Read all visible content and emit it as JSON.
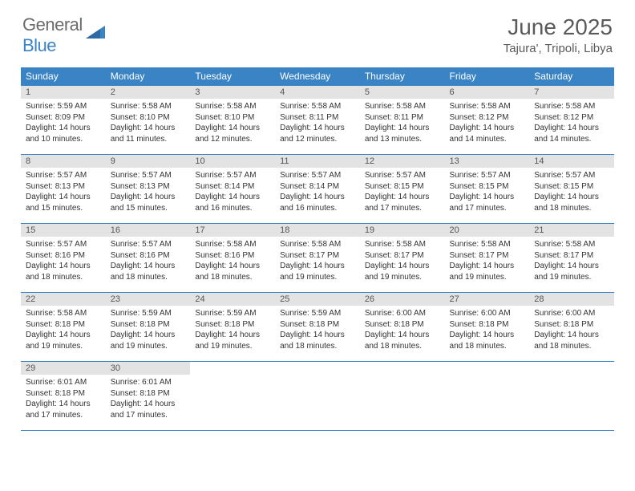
{
  "logo": {
    "general": "General",
    "blue": "Blue"
  },
  "title": "June 2025",
  "location": "Tajura', Tripoli, Libya",
  "colors": {
    "header_bg": "#3a84c5",
    "header_text": "#ffffff",
    "daynum_bg": "#e3e3e3",
    "border": "#3a84c5",
    "title_color": "#5a5a5a",
    "logo_gray": "#6b6b6b",
    "logo_blue": "#3a84c5"
  },
  "day_names": [
    "Sunday",
    "Monday",
    "Tuesday",
    "Wednesday",
    "Thursday",
    "Friday",
    "Saturday"
  ],
  "layout": {
    "start_offset": 0,
    "days_in_month": 30
  },
  "days": [
    {
      "n": 1,
      "sunrise": "5:59 AM",
      "sunset": "8:09 PM",
      "daylight": "14 hours and 10 minutes."
    },
    {
      "n": 2,
      "sunrise": "5:58 AM",
      "sunset": "8:10 PM",
      "daylight": "14 hours and 11 minutes."
    },
    {
      "n": 3,
      "sunrise": "5:58 AM",
      "sunset": "8:10 PM",
      "daylight": "14 hours and 12 minutes."
    },
    {
      "n": 4,
      "sunrise": "5:58 AM",
      "sunset": "8:11 PM",
      "daylight": "14 hours and 12 minutes."
    },
    {
      "n": 5,
      "sunrise": "5:58 AM",
      "sunset": "8:11 PM",
      "daylight": "14 hours and 13 minutes."
    },
    {
      "n": 6,
      "sunrise": "5:58 AM",
      "sunset": "8:12 PM",
      "daylight": "14 hours and 14 minutes."
    },
    {
      "n": 7,
      "sunrise": "5:58 AM",
      "sunset": "8:12 PM",
      "daylight": "14 hours and 14 minutes."
    },
    {
      "n": 8,
      "sunrise": "5:57 AM",
      "sunset": "8:13 PM",
      "daylight": "14 hours and 15 minutes."
    },
    {
      "n": 9,
      "sunrise": "5:57 AM",
      "sunset": "8:13 PM",
      "daylight": "14 hours and 15 minutes."
    },
    {
      "n": 10,
      "sunrise": "5:57 AM",
      "sunset": "8:14 PM",
      "daylight": "14 hours and 16 minutes."
    },
    {
      "n": 11,
      "sunrise": "5:57 AM",
      "sunset": "8:14 PM",
      "daylight": "14 hours and 16 minutes."
    },
    {
      "n": 12,
      "sunrise": "5:57 AM",
      "sunset": "8:15 PM",
      "daylight": "14 hours and 17 minutes."
    },
    {
      "n": 13,
      "sunrise": "5:57 AM",
      "sunset": "8:15 PM",
      "daylight": "14 hours and 17 minutes."
    },
    {
      "n": 14,
      "sunrise": "5:57 AM",
      "sunset": "8:15 PM",
      "daylight": "14 hours and 18 minutes."
    },
    {
      "n": 15,
      "sunrise": "5:57 AM",
      "sunset": "8:16 PM",
      "daylight": "14 hours and 18 minutes."
    },
    {
      "n": 16,
      "sunrise": "5:57 AM",
      "sunset": "8:16 PM",
      "daylight": "14 hours and 18 minutes."
    },
    {
      "n": 17,
      "sunrise": "5:58 AM",
      "sunset": "8:16 PM",
      "daylight": "14 hours and 18 minutes."
    },
    {
      "n": 18,
      "sunrise": "5:58 AM",
      "sunset": "8:17 PM",
      "daylight": "14 hours and 19 minutes."
    },
    {
      "n": 19,
      "sunrise": "5:58 AM",
      "sunset": "8:17 PM",
      "daylight": "14 hours and 19 minutes."
    },
    {
      "n": 20,
      "sunrise": "5:58 AM",
      "sunset": "8:17 PM",
      "daylight": "14 hours and 19 minutes."
    },
    {
      "n": 21,
      "sunrise": "5:58 AM",
      "sunset": "8:17 PM",
      "daylight": "14 hours and 19 minutes."
    },
    {
      "n": 22,
      "sunrise": "5:58 AM",
      "sunset": "8:18 PM",
      "daylight": "14 hours and 19 minutes."
    },
    {
      "n": 23,
      "sunrise": "5:59 AM",
      "sunset": "8:18 PM",
      "daylight": "14 hours and 19 minutes."
    },
    {
      "n": 24,
      "sunrise": "5:59 AM",
      "sunset": "8:18 PM",
      "daylight": "14 hours and 19 minutes."
    },
    {
      "n": 25,
      "sunrise": "5:59 AM",
      "sunset": "8:18 PM",
      "daylight": "14 hours and 18 minutes."
    },
    {
      "n": 26,
      "sunrise": "6:00 AM",
      "sunset": "8:18 PM",
      "daylight": "14 hours and 18 minutes."
    },
    {
      "n": 27,
      "sunrise": "6:00 AM",
      "sunset": "8:18 PM",
      "daylight": "14 hours and 18 minutes."
    },
    {
      "n": 28,
      "sunrise": "6:00 AM",
      "sunset": "8:18 PM",
      "daylight": "14 hours and 18 minutes."
    },
    {
      "n": 29,
      "sunrise": "6:01 AM",
      "sunset": "8:18 PM",
      "daylight": "14 hours and 17 minutes."
    },
    {
      "n": 30,
      "sunrise": "6:01 AM",
      "sunset": "8:18 PM",
      "daylight": "14 hours and 17 minutes."
    }
  ],
  "labels": {
    "sunrise": "Sunrise:",
    "sunset": "Sunset:",
    "daylight": "Daylight:"
  }
}
